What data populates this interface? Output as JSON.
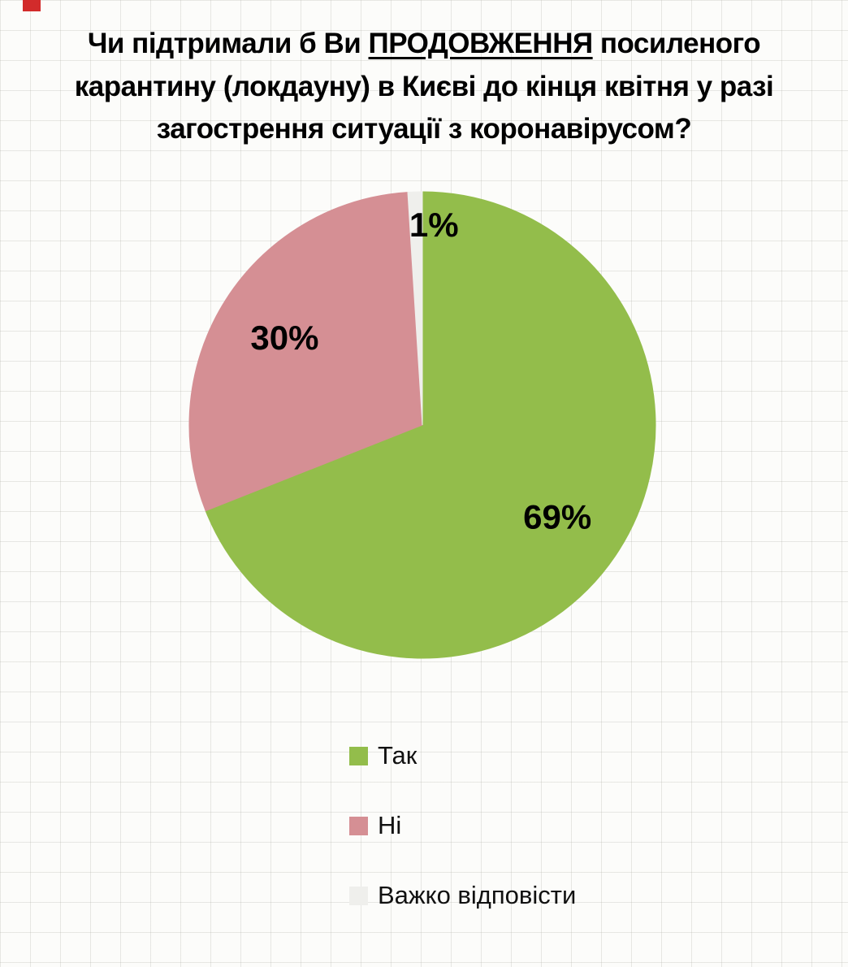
{
  "title": {
    "prefix": "Чи підтримали б Ви ",
    "underlined": "ПРОДОВЖЕННЯ",
    "suffix": " посиленого карантину (локдауну) в Києві до кінця квітня у разі загострення ситуації з коронавірусом?"
  },
  "corner_mark_color": "#d22b2b",
  "chart_data": {
    "type": "pie",
    "labels": [
      "Так",
      "Ні",
      "Важко відповісти"
    ],
    "values": [
      69,
      30,
      1
    ],
    "value_labels": [
      "69%",
      "30%",
      "1%"
    ],
    "colors": [
      "#93bd4b",
      "#d58f94",
      "#efefec"
    ],
    "start_angle_deg": 0,
    "direction": "clockwise",
    "legend_position": "bottom",
    "title": "Чи підтримали б Ви ПРОДОВЖЕННЯ посиленого карантину (локдауну) в Києві до кінця квітня у разі загострення ситуації з коронавірусом?"
  }
}
